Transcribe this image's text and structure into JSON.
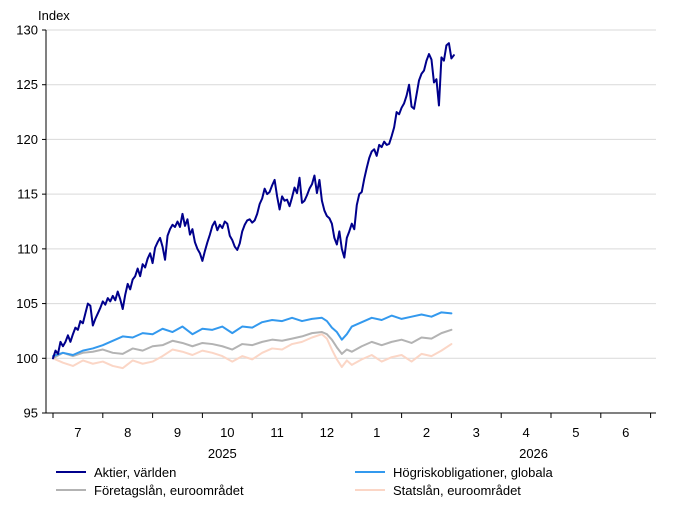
{
  "chart_data": {
    "type": "line",
    "ylabel": "Index",
    "ylim": [
      95,
      130
    ],
    "yticks": [
      95,
      100,
      105,
      110,
      115,
      120,
      125,
      130
    ],
    "grid": "horizontal",
    "x_periods": 12.4,
    "months": [
      {
        "label": "7",
        "pos": 0
      },
      {
        "label": "8",
        "pos": 1
      },
      {
        "label": "9",
        "pos": 2
      },
      {
        "label": "10",
        "pos": 3
      },
      {
        "label": "11",
        "pos": 4
      },
      {
        "label": "12",
        "pos": 5
      },
      {
        "label": "1",
        "pos": 6
      },
      {
        "label": "2",
        "pos": 7
      },
      {
        "label": "3",
        "pos": 8
      },
      {
        "label": "4",
        "pos": 9
      },
      {
        "label": "5",
        "pos": 10
      },
      {
        "label": "6",
        "pos": 11
      }
    ],
    "years": [
      {
        "label": "2025",
        "pos": 2.9
      },
      {
        "label": "2026",
        "pos": 9.15
      }
    ],
    "legend_position": "bottom",
    "series": [
      {
        "name": "Aktier, världen",
        "color": "#00008c",
        "width": 2,
        "points": [
          [
            0,
            100
          ],
          [
            0.1,
            100.7
          ],
          [
            0.2,
            100.4
          ],
          [
            0.3,
            101.5
          ],
          [
            0.4,
            101.1
          ],
          [
            0.5,
            101.5
          ],
          [
            0.6,
            102.1
          ],
          [
            0.7,
            101.5
          ],
          [
            0.8,
            102.2
          ],
          [
            0.9,
            102.8
          ],
          [
            1.0,
            102.6
          ],
          [
            1.1,
            103.4
          ],
          [
            1.2,
            103.2
          ],
          [
            1.3,
            104.1
          ],
          [
            1.4,
            105.0
          ],
          [
            1.5,
            104.8
          ],
          [
            1.6,
            103.0
          ],
          [
            1.7,
            103.6
          ],
          [
            1.8,
            104.1
          ],
          [
            1.9,
            104.6
          ],
          [
            2.0,
            105.2
          ],
          [
            2.1,
            104.9
          ],
          [
            2.2,
            105.5
          ],
          [
            2.3,
            105.2
          ],
          [
            2.4,
            105.7
          ],
          [
            2.5,
            105.3
          ],
          [
            2.6,
            106.1
          ],
          [
            2.7,
            105.4
          ],
          [
            2.8,
            104.5
          ],
          [
            2.9,
            105.8
          ],
          [
            3.0,
            106.8
          ],
          [
            3.1,
            106.3
          ],
          [
            3.2,
            107.2
          ],
          [
            3.3,
            107.5
          ],
          [
            3.4,
            108.2
          ],
          [
            3.5,
            107.5
          ],
          [
            3.6,
            108.6
          ],
          [
            3.7,
            108.3
          ],
          [
            3.8,
            109.1
          ],
          [
            3.9,
            109.6
          ],
          [
            4.0,
            108.7
          ],
          [
            4.1,
            110.1
          ],
          [
            4.2,
            110.6
          ],
          [
            4.3,
            111.0
          ],
          [
            4.4,
            110.2
          ],
          [
            4.5,
            109.0
          ],
          [
            4.6,
            111.2
          ],
          [
            4.7,
            111.8
          ],
          [
            4.8,
            112.2
          ],
          [
            4.9,
            112.0
          ],
          [
            5.0,
            112.5
          ],
          [
            5.1,
            112.0
          ],
          [
            5.2,
            113.2
          ],
          [
            5.3,
            112.1
          ],
          [
            5.4,
            112.7
          ],
          [
            5.5,
            111.3
          ],
          [
            5.6,
            111.8
          ],
          [
            5.7,
            110.6
          ],
          [
            5.8,
            110.0
          ],
          [
            5.9,
            109.6
          ],
          [
            6.0,
            108.9
          ],
          [
            6.1,
            109.8
          ],
          [
            6.2,
            110.6
          ],
          [
            6.3,
            111.3
          ],
          [
            6.4,
            112.1
          ],
          [
            6.5,
            112.5
          ],
          [
            6.6,
            111.7
          ],
          [
            6.7,
            112.2
          ],
          [
            6.8,
            111.9
          ],
          [
            6.9,
            112.5
          ],
          [
            7.0,
            112.3
          ],
          [
            7.1,
            111.2
          ],
          [
            7.2,
            110.8
          ],
          [
            7.3,
            110.2
          ],
          [
            7.4,
            109.9
          ],
          [
            7.5,
            110.5
          ],
          [
            7.6,
            111.6
          ],
          [
            7.7,
            112.2
          ],
          [
            7.8,
            112.6
          ],
          [
            7.9,
            112.7
          ],
          [
            8.0,
            112.4
          ],
          [
            8.1,
            112.6
          ],
          [
            8.2,
            113.2
          ],
          [
            8.3,
            114.1
          ],
          [
            8.4,
            114.6
          ],
          [
            8.5,
            115.5
          ],
          [
            8.6,
            115.0
          ],
          [
            8.7,
            115.2
          ],
          [
            8.8,
            115.8
          ],
          [
            8.9,
            116.3
          ],
          [
            9.0,
            114.8
          ],
          [
            9.1,
            113.6
          ],
          [
            9.2,
            114.8
          ],
          [
            9.3,
            114.4
          ],
          [
            9.4,
            114.5
          ],
          [
            9.5,
            113.9
          ],
          [
            9.6,
            114.7
          ],
          [
            9.7,
            115.6
          ],
          [
            9.8,
            115.1
          ],
          [
            9.9,
            116.5
          ],
          [
            10.0,
            114.2
          ],
          [
            10.1,
            114.4
          ],
          [
            10.2,
            114.9
          ],
          [
            10.3,
            115.5
          ],
          [
            10.4,
            115.9
          ],
          [
            10.5,
            116.7
          ],
          [
            10.6,
            115.1
          ],
          [
            10.7,
            116.3
          ],
          [
            10.8,
            114.4
          ],
          [
            10.9,
            113.5
          ],
          [
            11.0,
            113.0
          ],
          [
            11.1,
            112.8
          ],
          [
            11.2,
            112.3
          ],
          [
            11.3,
            111.0
          ],
          [
            11.4,
            110.4
          ],
          [
            11.5,
            111.6
          ],
          [
            11.6,
            110.0
          ],
          [
            11.7,
            109.2
          ],
          [
            11.8,
            111.0
          ],
          [
            11.9,
            111.6
          ],
          [
            12.0,
            112.3
          ],
          [
            12.1,
            111.8
          ],
          [
            12.2,
            114.0
          ],
          [
            12.3,
            115.0
          ],
          [
            12.4,
            115.2
          ],
          [
            12.5,
            116.4
          ],
          [
            12.6,
            117.4
          ],
          [
            12.7,
            118.3
          ],
          [
            12.8,
            118.9
          ],
          [
            12.9,
            119.1
          ],
          [
            13.0,
            118.5
          ],
          [
            13.1,
            119.5
          ],
          [
            13.2,
            119.3
          ],
          [
            13.3,
            119.8
          ],
          [
            13.4,
            119.5
          ],
          [
            13.5,
            119.6
          ],
          [
            13.6,
            120.3
          ],
          [
            13.7,
            121.1
          ],
          [
            13.8,
            122.5
          ],
          [
            13.9,
            122.3
          ],
          [
            14.0,
            122.9
          ],
          [
            14.1,
            123.3
          ],
          [
            14.2,
            124.0
          ],
          [
            14.3,
            125.0
          ],
          [
            14.4,
            123.0
          ],
          [
            14.5,
            122.8
          ],
          [
            14.6,
            124.1
          ],
          [
            14.7,
            125.4
          ],
          [
            14.8,
            126.0
          ],
          [
            14.9,
            126.3
          ],
          [
            15.0,
            127.2
          ],
          [
            15.1,
            127.8
          ],
          [
            15.2,
            127.3
          ],
          [
            15.3,
            125.2
          ],
          [
            15.4,
            125.5
          ],
          [
            15.5,
            123.1
          ],
          [
            15.6,
            127.5
          ],
          [
            15.7,
            127.2
          ],
          [
            15.8,
            128.6
          ],
          [
            15.9,
            128.8
          ],
          [
            16.0,
            127.4
          ],
          [
            16.1,
            127.7
          ]
        ]
      },
      {
        "name": "Högriskobligationer, globala",
        "color": "#3399ee",
        "width": 2,
        "points": [
          [
            0,
            100.2
          ],
          [
            0.4,
            100.5
          ],
          [
            0.8,
            100.3
          ],
          [
            1.2,
            100.7
          ],
          [
            1.6,
            100.9
          ],
          [
            2.0,
            101.2
          ],
          [
            2.4,
            101.6
          ],
          [
            2.8,
            102.0
          ],
          [
            3.2,
            101.9
          ],
          [
            3.6,
            102.3
          ],
          [
            4.0,
            102.2
          ],
          [
            4.4,
            102.7
          ],
          [
            4.8,
            102.4
          ],
          [
            5.2,
            102.9
          ],
          [
            5.6,
            102.2
          ],
          [
            6.0,
            102.7
          ],
          [
            6.4,
            102.6
          ],
          [
            6.8,
            102.9
          ],
          [
            7.2,
            102.3
          ],
          [
            7.6,
            102.9
          ],
          [
            8.0,
            102.8
          ],
          [
            8.4,
            103.3
          ],
          [
            8.8,
            103.5
          ],
          [
            9.2,
            103.4
          ],
          [
            9.6,
            103.7
          ],
          [
            10.0,
            103.4
          ],
          [
            10.4,
            103.6
          ],
          [
            10.8,
            103.7
          ],
          [
            11.0,
            103.4
          ],
          [
            11.2,
            102.8
          ],
          [
            11.4,
            102.4
          ],
          [
            11.6,
            101.7
          ],
          [
            11.8,
            102.2
          ],
          [
            12.0,
            102.9
          ],
          [
            12.4,
            103.3
          ],
          [
            12.8,
            103.7
          ],
          [
            13.2,
            103.5
          ],
          [
            13.6,
            103.9
          ],
          [
            14.0,
            103.6
          ],
          [
            14.4,
            103.8
          ],
          [
            14.8,
            104.0
          ],
          [
            15.2,
            103.8
          ],
          [
            15.6,
            104.2
          ],
          [
            16.0,
            104.1
          ]
        ]
      },
      {
        "name": "Företagslån, euroområdet",
        "color": "#b3b3b3",
        "width": 2,
        "points": [
          [
            0,
            100.0
          ],
          [
            0.4,
            100.5
          ],
          [
            0.8,
            100.2
          ],
          [
            1.2,
            100.5
          ],
          [
            1.6,
            100.6
          ],
          [
            2.0,
            100.8
          ],
          [
            2.4,
            100.5
          ],
          [
            2.8,
            100.4
          ],
          [
            3.2,
            100.9
          ],
          [
            3.6,
            100.7
          ],
          [
            4.0,
            101.1
          ],
          [
            4.4,
            101.2
          ],
          [
            4.8,
            101.6
          ],
          [
            5.2,
            101.4
          ],
          [
            5.6,
            101.1
          ],
          [
            6.0,
            101.4
          ],
          [
            6.4,
            101.3
          ],
          [
            6.8,
            101.1
          ],
          [
            7.2,
            100.8
          ],
          [
            7.6,
            101.3
          ],
          [
            8.0,
            101.2
          ],
          [
            8.4,
            101.5
          ],
          [
            8.8,
            101.7
          ],
          [
            9.2,
            101.6
          ],
          [
            9.6,
            101.8
          ],
          [
            10.0,
            102.0
          ],
          [
            10.4,
            102.3
          ],
          [
            10.8,
            102.4
          ],
          [
            11.0,
            102.2
          ],
          [
            11.2,
            101.7
          ],
          [
            11.4,
            101.0
          ],
          [
            11.6,
            100.4
          ],
          [
            11.8,
            100.8
          ],
          [
            12.0,
            100.6
          ],
          [
            12.4,
            101.1
          ],
          [
            12.8,
            101.5
          ],
          [
            13.2,
            101.2
          ],
          [
            13.6,
            101.5
          ],
          [
            14.0,
            101.7
          ],
          [
            14.4,
            101.4
          ],
          [
            14.8,
            101.9
          ],
          [
            15.2,
            101.8
          ],
          [
            15.6,
            102.3
          ],
          [
            16.0,
            102.6
          ]
        ]
      },
      {
        "name": "Statslån, euroområdet",
        "color": "#fbd6c6",
        "width": 2,
        "points": [
          [
            0,
            100.0
          ],
          [
            0.4,
            99.6
          ],
          [
            0.8,
            99.3
          ],
          [
            1.2,
            99.8
          ],
          [
            1.6,
            99.5
          ],
          [
            2.0,
            99.7
          ],
          [
            2.4,
            99.3
          ],
          [
            2.8,
            99.1
          ],
          [
            3.2,
            99.8
          ],
          [
            3.6,
            99.5
          ],
          [
            4.0,
            99.7
          ],
          [
            4.4,
            100.2
          ],
          [
            4.8,
            100.8
          ],
          [
            5.2,
            100.6
          ],
          [
            5.6,
            100.3
          ],
          [
            6.0,
            100.7
          ],
          [
            6.4,
            100.5
          ],
          [
            6.8,
            100.2
          ],
          [
            7.2,
            99.7
          ],
          [
            7.6,
            100.2
          ],
          [
            8.0,
            99.9
          ],
          [
            8.4,
            100.5
          ],
          [
            8.8,
            100.9
          ],
          [
            9.2,
            100.8
          ],
          [
            9.6,
            101.3
          ],
          [
            10.0,
            101.5
          ],
          [
            10.4,
            101.9
          ],
          [
            10.8,
            102.2
          ],
          [
            11.0,
            101.8
          ],
          [
            11.2,
            100.8
          ],
          [
            11.4,
            99.9
          ],
          [
            11.6,
            99.2
          ],
          [
            11.8,
            99.8
          ],
          [
            12.0,
            99.4
          ],
          [
            12.4,
            99.9
          ],
          [
            12.8,
            100.3
          ],
          [
            13.2,
            99.7
          ],
          [
            13.6,
            100.1
          ],
          [
            14.0,
            100.3
          ],
          [
            14.4,
            99.7
          ],
          [
            14.8,
            100.4
          ],
          [
            15.2,
            100.2
          ],
          [
            15.6,
            100.7
          ],
          [
            16.0,
            101.3
          ]
        ]
      }
    ]
  }
}
